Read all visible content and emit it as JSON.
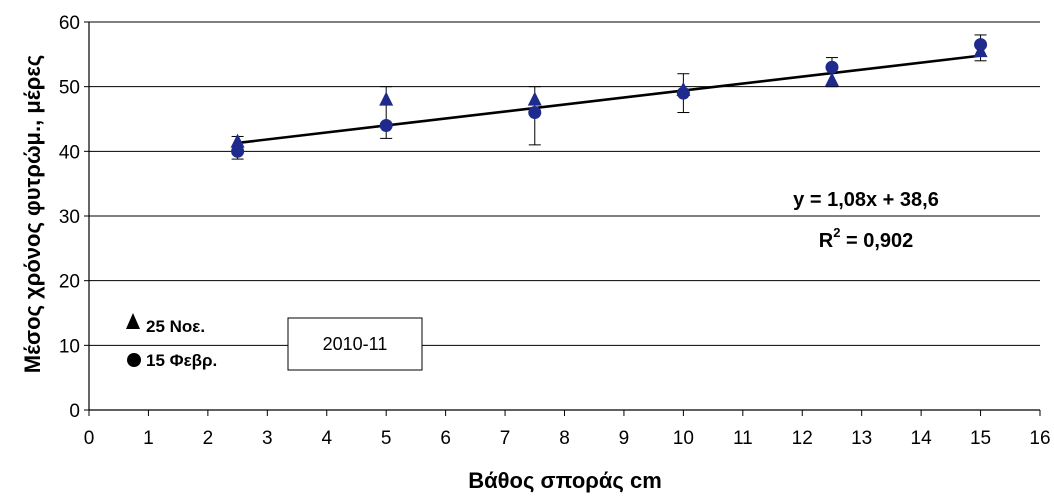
{
  "chart_data": {
    "type": "scatter",
    "xlabel": "Βάθος σποράς cm",
    "ylabel": "Μέσος χρόνος φυτρώμ., μέρες",
    "xlim": [
      0,
      16
    ],
    "ylim": [
      0,
      60
    ],
    "x_ticks": [
      "0",
      "1",
      "2",
      "3",
      "4",
      "5",
      "6",
      "7",
      "8",
      "9",
      "10",
      "11",
      "12",
      "13",
      "14",
      "15",
      "16"
    ],
    "y_ticks": [
      "0",
      "10",
      "20",
      "30",
      "40",
      "50",
      "60"
    ],
    "grid": "horizontal",
    "series": [
      {
        "name": "25 Νοε.",
        "marker": "triangle",
        "color": "#1e2a8c",
        "x": [
          2.5,
          5,
          7.5,
          10,
          12.5,
          15
        ],
        "y": [
          41.5,
          48,
          48,
          49.5,
          51,
          55.5
        ]
      },
      {
        "name": "15 Φεβρ.",
        "marker": "circle",
        "color": "#1e2a8c",
        "x": [
          2.5,
          5,
          7.5,
          10,
          12.5,
          15
        ],
        "y": [
          40,
          44,
          46,
          49,
          53,
          56.5
        ]
      }
    ],
    "error_bars": [
      {
        "x": 2.5,
        "low": 38.8,
        "high": 42.3
      },
      {
        "x": 5,
        "low": 42,
        "high": 50
      },
      {
        "x": 7.5,
        "low": 41,
        "high": 50
      },
      {
        "x": 10,
        "low": 46,
        "high": 52
      },
      {
        "x": 12.5,
        "low": 50,
        "high": 54.5
      },
      {
        "x": 15,
        "low": 54,
        "high": 58
      }
    ],
    "trendline": {
      "slope": 1.08,
      "intercept": 38.6,
      "x_range": [
        2.5,
        15
      ]
    },
    "equation_line1": "y = 1,08x + 38,6",
    "equation_r_base": "R",
    "equation_r_sup": "2",
    "equation_r_rest": " = 0,902",
    "legend_placement": "bottom-left",
    "legend": [
      {
        "label": "25 Νοε.",
        "marker": "triangle"
      },
      {
        "label": "15 Φεβρ.",
        "marker": "circle"
      }
    ],
    "annotation_box": "2010-11"
  }
}
